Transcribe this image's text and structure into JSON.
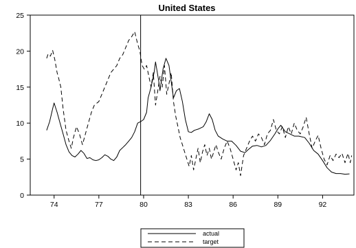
{
  "chart_data": {
    "type": "line",
    "title": "United States",
    "xlabel": "",
    "ylabel": "",
    "xlim": [
      1972.4,
      1994.1
    ],
    "ylim": [
      0,
      25
    ],
    "x_ticks": [
      {
        "value": 1974,
        "label": "74"
      },
      {
        "value": 1977,
        "label": "77"
      },
      {
        "value": 1980,
        "label": "80"
      },
      {
        "value": 1983,
        "label": "83"
      },
      {
        "value": 1986,
        "label": "86"
      },
      {
        "value": 1989,
        "label": "89"
      },
      {
        "value": 1992,
        "label": "92"
      }
    ],
    "y_ticks": [
      {
        "value": 0,
        "label": "0"
      },
      {
        "value": 5,
        "label": "5"
      },
      {
        "value": 10,
        "label": "10"
      },
      {
        "value": 15,
        "label": "15"
      },
      {
        "value": 20,
        "label": "20"
      },
      {
        "value": 25,
        "label": "25"
      }
    ],
    "vertical_line_x": 1979.8,
    "grid": false,
    "legend_position": "bottom-center",
    "series": [
      {
        "name": "actual",
        "style": "solid",
        "points": [
          [
            1973.5,
            9.0
          ],
          [
            1973.7,
            10.2
          ],
          [
            1973.9,
            12.0
          ],
          [
            1974.0,
            12.8
          ],
          [
            1974.2,
            11.5
          ],
          [
            1974.4,
            10.0
          ],
          [
            1974.6,
            8.5
          ],
          [
            1974.8,
            7.0
          ],
          [
            1975.0,
            6.0
          ],
          [
            1975.2,
            5.5
          ],
          [
            1975.4,
            5.3
          ],
          [
            1975.6,
            5.7
          ],
          [
            1975.8,
            6.2
          ],
          [
            1976.0,
            5.8
          ],
          [
            1976.2,
            5.1
          ],
          [
            1976.4,
            5.2
          ],
          [
            1976.6,
            4.9
          ],
          [
            1976.8,
            4.8
          ],
          [
            1977.0,
            4.9
          ],
          [
            1977.2,
            5.2
          ],
          [
            1977.4,
            5.6
          ],
          [
            1977.6,
            5.4
          ],
          [
            1977.8,
            5.0
          ],
          [
            1978.0,
            4.8
          ],
          [
            1978.2,
            5.3
          ],
          [
            1978.4,
            6.2
          ],
          [
            1978.6,
            6.6
          ],
          [
            1978.8,
            7.0
          ],
          [
            1979.0,
            7.5
          ],
          [
            1979.2,
            8.0
          ],
          [
            1979.4,
            8.8
          ],
          [
            1979.6,
            10.0
          ],
          [
            1979.8,
            10.2
          ],
          [
            1980.0,
            10.5
          ],
          [
            1980.2,
            11.5
          ],
          [
            1980.3,
            13.5
          ],
          [
            1980.5,
            15.0
          ],
          [
            1980.7,
            17.0
          ],
          [
            1980.8,
            18.5
          ],
          [
            1981.0,
            16.0
          ],
          [
            1981.1,
            14.5
          ],
          [
            1981.3,
            17.5
          ],
          [
            1981.5,
            19.0
          ],
          [
            1981.7,
            18.0
          ],
          [
            1981.9,
            15.0
          ],
          [
            1982.0,
            13.5
          ],
          [
            1982.2,
            14.5
          ],
          [
            1982.4,
            14.8
          ],
          [
            1982.6,
            13.0
          ],
          [
            1982.8,
            10.5
          ],
          [
            1983.0,
            8.8
          ],
          [
            1983.2,
            8.7
          ],
          [
            1983.4,
            9.0
          ],
          [
            1983.7,
            9.2
          ],
          [
            1984.0,
            9.5
          ],
          [
            1984.2,
            10.2
          ],
          [
            1984.4,
            11.3
          ],
          [
            1984.6,
            10.5
          ],
          [
            1984.8,
            9.0
          ],
          [
            1985.0,
            8.2
          ],
          [
            1985.3,
            7.8
          ],
          [
            1985.6,
            7.5
          ],
          [
            1985.9,
            7.5
          ],
          [
            1986.2,
            6.9
          ],
          [
            1986.5,
            6.1
          ],
          [
            1986.8,
            5.9
          ],
          [
            1987.0,
            6.3
          ],
          [
            1987.3,
            6.8
          ],
          [
            1987.6,
            6.9
          ],
          [
            1987.9,
            6.7
          ],
          [
            1988.2,
            6.9
          ],
          [
            1988.5,
            7.6
          ],
          [
            1988.8,
            8.5
          ],
          [
            1989.0,
            9.2
          ],
          [
            1989.2,
            9.7
          ],
          [
            1989.5,
            8.8
          ],
          [
            1989.8,
            8.5
          ],
          [
            1990.1,
            8.2
          ],
          [
            1990.4,
            8.2
          ],
          [
            1990.8,
            8.0
          ],
          [
            1991.1,
            7.2
          ],
          [
            1991.4,
            6.2
          ],
          [
            1991.7,
            5.7
          ],
          [
            1992.0,
            4.8
          ],
          [
            1992.3,
            3.8
          ],
          [
            1992.6,
            3.2
          ],
          [
            1992.9,
            3.0
          ],
          [
            1993.2,
            3.0
          ],
          [
            1993.5,
            2.9
          ],
          [
            1993.8,
            2.95
          ]
        ]
      },
      {
        "name": "target",
        "style": "dashed",
        "points": [
          [
            1973.5,
            19.0
          ],
          [
            1973.6,
            19.6
          ],
          [
            1973.75,
            19.3
          ],
          [
            1973.9,
            20.1
          ],
          [
            1974.05,
            18.8
          ],
          [
            1974.2,
            17.0
          ],
          [
            1974.3,
            16.3
          ],
          [
            1974.45,
            15.0
          ],
          [
            1974.6,
            12.0
          ],
          [
            1974.8,
            9.0
          ],
          [
            1975.0,
            7.5
          ],
          [
            1975.15,
            6.5
          ],
          [
            1975.3,
            8.0
          ],
          [
            1975.5,
            9.5
          ],
          [
            1975.7,
            8.5
          ],
          [
            1975.9,
            7.0
          ],
          [
            1976.1,
            8.5
          ],
          [
            1976.3,
            10.0
          ],
          [
            1976.5,
            11.5
          ],
          [
            1976.7,
            12.5
          ],
          [
            1977.0,
            13.0
          ],
          [
            1977.2,
            14.0
          ],
          [
            1977.4,
            15.0
          ],
          [
            1977.6,
            16.0
          ],
          [
            1977.8,
            17.0
          ],
          [
            1978.0,
            17.5
          ],
          [
            1978.2,
            18.0
          ],
          [
            1978.4,
            19.0
          ],
          [
            1978.6,
            19.5
          ],
          [
            1978.8,
            20.5
          ],
          [
            1979.0,
            21.5
          ],
          [
            1979.2,
            22.0
          ],
          [
            1979.4,
            22.7
          ],
          [
            1979.6,
            21.0
          ],
          [
            1979.75,
            20.0
          ],
          [
            1979.9,
            18.0
          ],
          [
            1980.05,
            17.5
          ],
          [
            1980.2,
            18.0
          ],
          [
            1980.35,
            16.5
          ],
          [
            1980.5,
            15.0
          ],
          [
            1980.65,
            17.0
          ],
          [
            1980.8,
            12.5
          ],
          [
            1980.95,
            14.5
          ],
          [
            1981.1,
            16.5
          ],
          [
            1981.25,
            15.0
          ],
          [
            1981.4,
            18.0
          ],
          [
            1981.55,
            14.0
          ],
          [
            1981.7,
            15.5
          ],
          [
            1981.85,
            17.0
          ],
          [
            1982.0,
            13.0
          ],
          [
            1982.15,
            11.0
          ],
          [
            1982.3,
            9.5
          ],
          [
            1982.45,
            8.0
          ],
          [
            1982.6,
            7.0
          ],
          [
            1982.75,
            6.0
          ],
          [
            1982.9,
            5.0
          ],
          [
            1983.05,
            4.0
          ],
          [
            1983.2,
            5.5
          ],
          [
            1983.35,
            3.5
          ],
          [
            1983.5,
            5.0
          ],
          [
            1983.65,
            6.5
          ],
          [
            1983.8,
            4.5
          ],
          [
            1983.95,
            6.0
          ],
          [
            1984.1,
            7.0
          ],
          [
            1984.25,
            5.5
          ],
          [
            1984.4,
            6.5
          ],
          [
            1984.55,
            5.0
          ],
          [
            1984.7,
            6.0
          ],
          [
            1984.85,
            7.0
          ],
          [
            1985.0,
            6.0
          ],
          [
            1985.2,
            5.0
          ],
          [
            1985.4,
            6.5
          ],
          [
            1985.6,
            7.5
          ],
          [
            1985.8,
            6.5
          ],
          [
            1986.0,
            5.0
          ],
          [
            1986.2,
            3.5
          ],
          [
            1986.35,
            4.5
          ],
          [
            1986.5,
            2.7
          ],
          [
            1986.7,
            5.5
          ],
          [
            1986.9,
            6.5
          ],
          [
            1987.1,
            7.5
          ],
          [
            1987.3,
            8.2
          ],
          [
            1987.5,
            7.5
          ],
          [
            1987.7,
            8.5
          ],
          [
            1987.9,
            8.0
          ],
          [
            1988.1,
            7.0
          ],
          [
            1988.3,
            8.5
          ],
          [
            1988.5,
            9.0
          ],
          [
            1988.7,
            10.5
          ],
          [
            1988.9,
            9.0
          ],
          [
            1989.1,
            8.5
          ],
          [
            1989.3,
            9.5
          ],
          [
            1989.5,
            8.0
          ],
          [
            1989.7,
            9.5
          ],
          [
            1989.9,
            8.5
          ],
          [
            1990.1,
            10.0
          ],
          [
            1990.3,
            9.0
          ],
          [
            1990.5,
            8.5
          ],
          [
            1990.7,
            9.5
          ],
          [
            1990.9,
            10.8
          ],
          [
            1991.1,
            8.5
          ],
          [
            1991.3,
            6.5
          ],
          [
            1991.5,
            7.5
          ],
          [
            1991.7,
            8.3
          ],
          [
            1991.9,
            6.5
          ],
          [
            1992.1,
            5.0
          ],
          [
            1992.3,
            4.2
          ],
          [
            1992.5,
            5.5
          ],
          [
            1992.7,
            4.8
          ],
          [
            1992.9,
            5.7
          ],
          [
            1993.1,
            5.2
          ],
          [
            1993.3,
            5.8
          ],
          [
            1993.5,
            4.5
          ],
          [
            1993.7,
            5.8
          ],
          [
            1993.85,
            4.5
          ],
          [
            1993.95,
            5.5
          ]
        ]
      }
    ]
  }
}
